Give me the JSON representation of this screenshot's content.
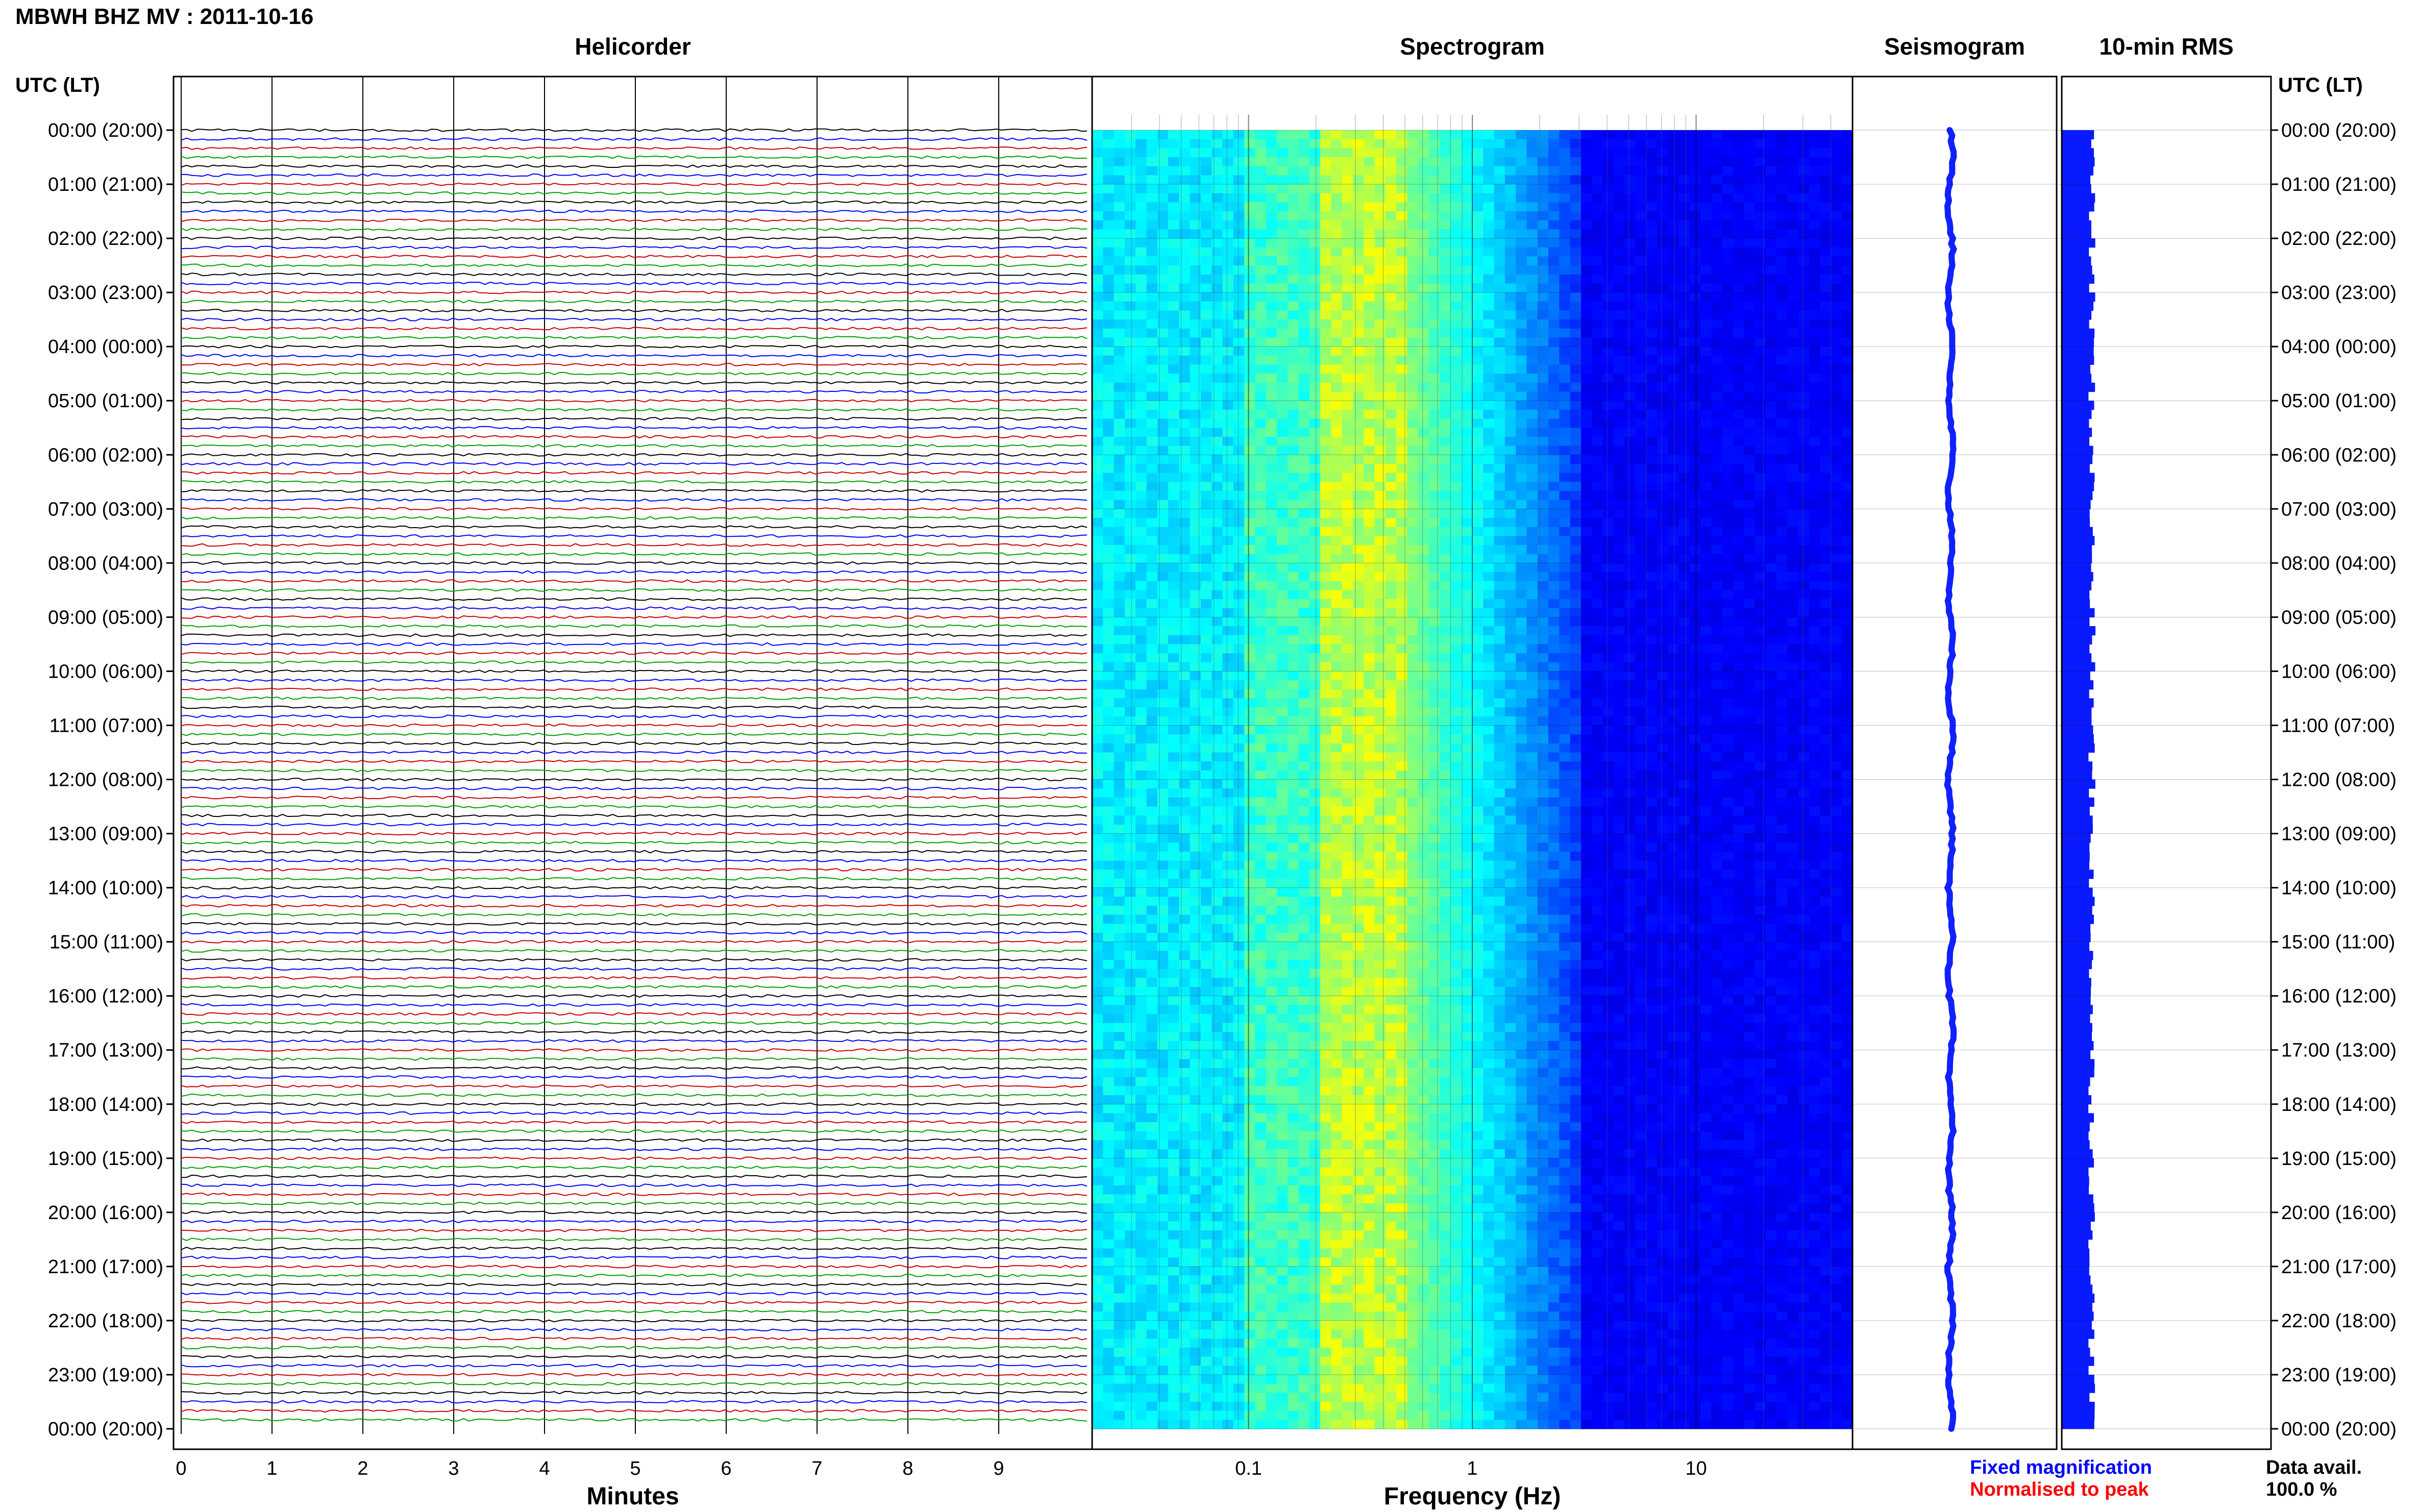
{
  "header": {
    "title": "MBWH BHZ MV : 2011-10-16"
  },
  "panels": {
    "helicorder": "Helicorder",
    "spectrogram": "Spectrogram",
    "seismogram": "Seismogram",
    "rms": "10-min RMS"
  },
  "axes": {
    "utc_lt_left": "UTC (LT)",
    "utc_lt_right": "UTC (LT)",
    "helicorder_xlabel": "Minutes",
    "spectrogram_xlabel": "Frequency (Hz)"
  },
  "legend": {
    "fixed": "Fixed magnification",
    "normalised": "Normalised to peak",
    "data_avail_label": "Data avail.",
    "data_avail_value": "100.0 %"
  },
  "colors": {
    "trace_cycle": [
      "#000000",
      "#0000ff",
      "#cc0000",
      "#00a000"
    ],
    "fixed_legend": "#0000ff",
    "normalised_legend": "#ff0000",
    "rms_fill": "#0a1aff",
    "seismogram_trace": "#1020ff"
  },
  "chart_data": [
    {
      "type": "line",
      "title": "Helicorder",
      "xlabel": "Minutes",
      "ylabel": "UTC (LT)",
      "x_ticks": [
        "0",
        "1",
        "2",
        "3",
        "4",
        "5",
        "6",
        "7",
        "8",
        "9"
      ],
      "xlim": [
        0,
        10
      ],
      "y_ticks": [
        "00:00 (20:00)",
        "01:00 (21:00)",
        "02:00 (22:00)",
        "03:00 (23:00)",
        "04:00 (00:00)",
        "05:00 (01:00)",
        "06:00 (02:00)",
        "07:00 (03:00)",
        "08:00 (04:00)",
        "09:00 (05:00)",
        "10:00 (06:00)",
        "11:00 (07:00)",
        "12:00 (08:00)",
        "13:00 (09:00)",
        "14:00 (10:00)",
        "15:00 (11:00)",
        "16:00 (12:00)",
        "17:00 (13:00)",
        "18:00 (14:00)",
        "19:00 (15:00)",
        "20:00 (16:00)",
        "21:00 (17:00)",
        "22:00 (18:00)",
        "23:00 (19:00)",
        "00:00 (20:00)"
      ],
      "traces_per_hour": 6,
      "grid": true
    },
    {
      "type": "heatmap",
      "title": "Spectrogram",
      "xlabel": "Frequency (Hz)",
      "x_scale": "log",
      "x_ticks": [
        "0.1",
        "1",
        "10"
      ],
      "xlim": [
        0.02,
        50
      ],
      "peak_band_hz": [
        0.2,
        0.5
      ],
      "noise_floor_above_hz": 3
    },
    {
      "type": "line",
      "title": "Seismogram",
      "note": "near-constant trace"
    },
    {
      "type": "bar",
      "title": "10-min RMS",
      "orientation": "horizontal",
      "bars_per_hour": 6
    }
  ]
}
